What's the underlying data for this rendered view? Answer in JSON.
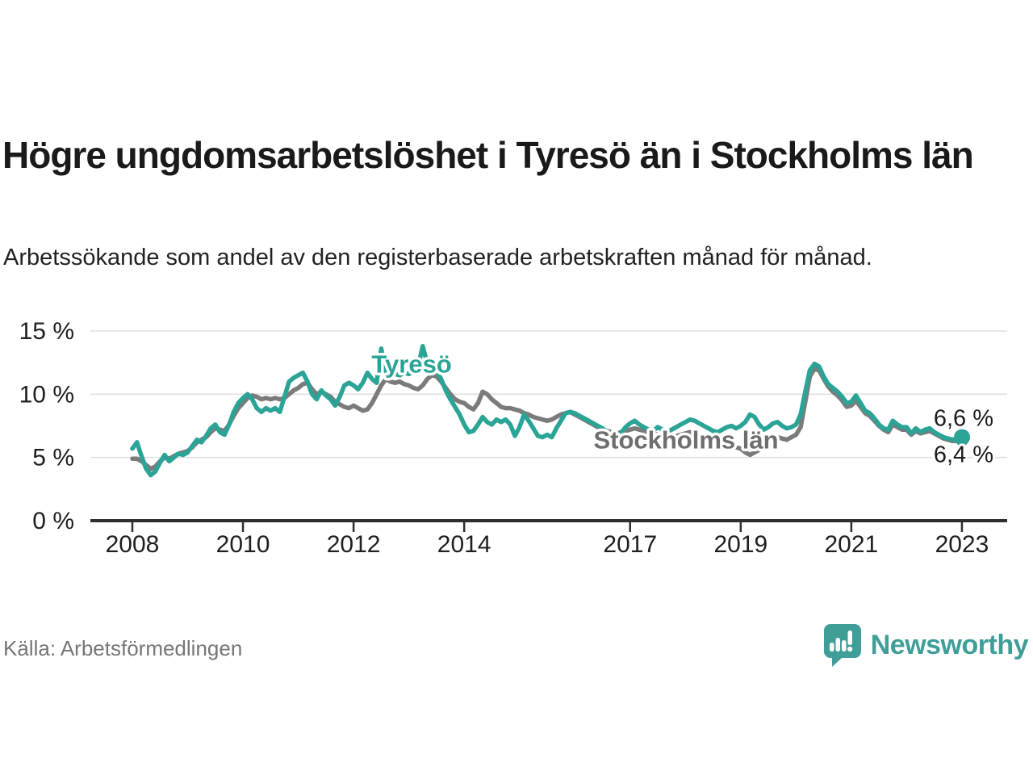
{
  "header": {
    "title": "Högre ungdomsarbetslöshet i Tyresö än i Stockholms län",
    "subtitle": "Arbetssökande som andel av den registerbaserade arbetskraften månad för månad."
  },
  "footer": {
    "source": "Källa: Arbetsförmedlingen",
    "brand": "Newsworthy"
  },
  "colors": {
    "accent_teal": "#2aa496",
    "line_gray": "#7b7b7b",
    "label_gray": "#6e6e6e",
    "brand_teal": "#3f9e98",
    "axis_text": "#1f1f1f",
    "value_text": "#1c1c1c",
    "grid_line": "#e0e0e0",
    "axis_line": "#2e2e2e",
    "source_text": "#767676"
  },
  "chart_data": {
    "type": "line",
    "x_unit": "month",
    "x_start": "2008-01",
    "x_end": "2023-01",
    "grid": "horizontal",
    "legend_position": "inline-labels",
    "x_axis": {
      "tick_years": [
        2008,
        2010,
        2012,
        2014,
        2017,
        2019,
        2021,
        2023
      ]
    },
    "y_axis": {
      "range": [
        0,
        15.9
      ],
      "ticks": [
        {
          "value": 0,
          "label": "0 %"
        },
        {
          "value": 5,
          "label": "5 %"
        },
        {
          "value": 10,
          "label": "10 %"
        },
        {
          "value": 15,
          "label": "15 %"
        }
      ]
    },
    "series": [
      {
        "id": "stockholms-lan",
        "name": "Stockholms län",
        "color": "#7b7b7b",
        "label_color": "#6e6e6e",
        "end_label": "6,4 %",
        "end_label_dy": 28,
        "end_dot_radius": 8,
        "label_anchor": {
          "year": 2018.01,
          "pct": 6.4
        },
        "values": [
          4.9,
          4.9,
          4.7,
          4.4,
          4.1,
          4.3,
          4.7,
          5.0,
          4.9,
          5.1,
          5.3,
          5.4,
          5.5,
          5.8,
          6.2,
          6.4,
          6.6,
          7.0,
          7.3,
          7.2,
          7.1,
          7.6,
          8.3,
          8.9,
          9.3,
          9.7,
          9.9,
          9.8,
          9.6,
          9.7,
          9.6,
          9.7,
          9.6,
          9.7,
          10.0,
          10.3,
          10.5,
          10.8,
          10.9,
          10.4,
          10.0,
          10.2,
          10.0,
          9.8,
          9.4,
          9.2,
          9.0,
          8.9,
          9.1,
          8.9,
          8.7,
          8.8,
          9.3,
          10.0,
          10.7,
          11.2,
          11.0,
          10.9,
          11.0,
          10.8,
          10.7,
          10.5,
          10.4,
          10.7,
          11.2,
          11.5,
          11.4,
          11.0,
          10.5,
          10.0,
          9.6,
          9.4,
          9.3,
          9.0,
          8.8,
          9.3,
          10.2,
          10.0,
          9.6,
          9.3,
          9.0,
          8.9,
          8.9,
          8.8,
          8.7,
          8.5,
          8.4,
          8.2,
          8.1,
          8.0,
          7.9,
          8.0,
          8.2,
          8.4,
          8.5,
          8.6,
          8.4,
          8.2,
          8.0,
          7.8,
          7.6,
          7.4,
          7.2,
          7.1,
          7.0,
          6.9,
          7.0,
          7.1,
          7.2,
          7.3,
          7.2,
          7.1,
          7.0,
          6.9,
          6.8,
          6.7,
          6.6,
          6.6,
          6.7,
          6.8,
          6.9,
          7.0,
          6.9,
          6.8,
          6.6,
          6.5,
          6.3,
          6.2,
          6.1,
          6.0,
          5.9,
          5.8,
          5.7,
          5.4,
          5.2,
          5.4,
          5.6,
          6.0,
          6.3,
          6.5,
          6.6,
          6.5,
          6.4,
          6.6,
          6.8,
          7.4,
          9.4,
          11.4,
          12.0,
          11.9,
          11.2,
          10.6,
          10.2,
          9.9,
          9.5,
          9.0,
          9.1,
          9.5,
          9.0,
          8.5,
          8.3,
          7.9,
          7.5,
          7.2,
          7.0,
          7.6,
          7.4,
          7.2,
          7.2,
          6.8,
          7.1,
          6.9,
          7.0,
          7.1,
          6.9,
          6.7,
          6.5,
          6.4,
          6.3,
          6.3,
          6.4
        ]
      },
      {
        "id": "tyreso",
        "name": "Tyresö",
        "color": "#2aa496",
        "label_color": "#2aa496",
        "end_label": "6,6 %",
        "end_label_dy": -14,
        "end_dot_radius": 10,
        "label_anchor": {
          "year": 2013.05,
          "pct": 12.4
        },
        "values": [
          5.7,
          6.2,
          5.1,
          4.1,
          3.6,
          3.9,
          4.6,
          5.2,
          4.7,
          5.0,
          5.3,
          5.2,
          5.4,
          5.9,
          6.4,
          6.2,
          6.7,
          7.3,
          7.6,
          7.0,
          6.8,
          7.6,
          8.6,
          9.3,
          9.7,
          10.0,
          9.6,
          8.9,
          8.6,
          8.9,
          8.7,
          8.9,
          8.6,
          9.8,
          11.0,
          11.3,
          11.5,
          11.7,
          11.0,
          10.0,
          9.6,
          10.3,
          9.9,
          9.6,
          9.1,
          9.8,
          10.7,
          10.9,
          10.7,
          10.4,
          10.9,
          11.7,
          11.2,
          10.9,
          13.6,
          11.8,
          11.4,
          11.6,
          11.5,
          11.7,
          11.6,
          11.8,
          12.2,
          13.8,
          12.4,
          11.9,
          11.9,
          11.2,
          10.3,
          9.6,
          9.0,
          8.4,
          7.6,
          7.0,
          7.1,
          7.6,
          8.2,
          7.8,
          7.6,
          8.0,
          7.8,
          8.0,
          7.6,
          6.7,
          7.4,
          8.4,
          7.9,
          7.3,
          6.7,
          6.6,
          6.8,
          6.6,
          7.3,
          7.9,
          8.5,
          8.6,
          8.5,
          8.3,
          8.1,
          7.9,
          7.7,
          7.5,
          7.3,
          7.0,
          6.7,
          6.5,
          6.9,
          7.4,
          7.7,
          7.9,
          7.6,
          7.4,
          7.2,
          7.1,
          7.4,
          7.2,
          7.0,
          7.2,
          7.4,
          7.6,
          7.8,
          8.0,
          7.9,
          7.7,
          7.5,
          7.3,
          7.1,
          7.0,
          7.2,
          7.4,
          7.5,
          7.3,
          7.5,
          7.8,
          8.4,
          8.2,
          7.6,
          7.2,
          7.4,
          7.7,
          7.8,
          7.5,
          7.3,
          7.4,
          7.6,
          8.4,
          10.2,
          11.9,
          12.4,
          12.2,
          11.4,
          10.8,
          10.5,
          10.2,
          9.8,
          9.3,
          9.4,
          9.9,
          9.3,
          8.7,
          8.5,
          8.1,
          7.6,
          7.3,
          7.2,
          7.9,
          7.6,
          7.4,
          7.4,
          6.9,
          7.3,
          7.0,
          7.2,
          7.3,
          7.0,
          6.8,
          6.6,
          6.5,
          6.4,
          6.5,
          6.6
        ]
      }
    ]
  }
}
